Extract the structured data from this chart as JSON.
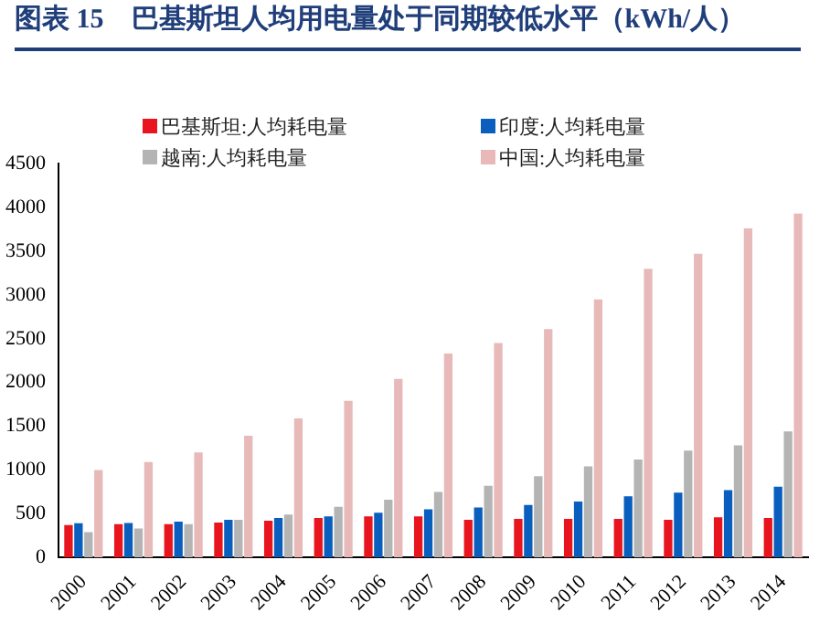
{
  "chart_data": {
    "type": "bar",
    "title": "图表 15　巴基斯坦人均用电量处于同期较低水平（kWh/人）",
    "categories": [
      "2000",
      "2001",
      "2002",
      "2003",
      "2004",
      "2005",
      "2006",
      "2007",
      "2008",
      "2009",
      "2010",
      "2011",
      "2012",
      "2013",
      "2014"
    ],
    "series": [
      {
        "name": "巴基斯坦:人均耗电量",
        "color": "#e8141e",
        "values": [
          370,
          380,
          380,
          400,
          420,
          450,
          470,
          470,
          430,
          440,
          440,
          440,
          430,
          460,
          450
        ]
      },
      {
        "name": "印度:人均耗电量",
        "color": "#0a5fbe",
        "values": [
          390,
          395,
          410,
          430,
          450,
          470,
          510,
          550,
          570,
          600,
          640,
          700,
          740,
          770,
          810
        ]
      },
      {
        "name": "越南:人均耗电量",
        "color": "#b4b4b4",
        "values": [
          290,
          330,
          380,
          430,
          490,
          580,
          660,
          750,
          820,
          930,
          1040,
          1120,
          1220,
          1280,
          1440
        ]
      },
      {
        "name": "中国:人均耗电量",
        "color": "#e8b9b9",
        "values": [
          1000,
          1090,
          1200,
          1390,
          1590,
          1790,
          2040,
          2330,
          2450,
          2610,
          2950,
          3300,
          3470,
          3760,
          3930
        ]
      }
    ],
    "ylim": [
      0,
      4500
    ],
    "yticks": [
      0,
      500,
      1000,
      1500,
      2000,
      2500,
      3000,
      3500,
      4000,
      4500
    ],
    "grid": false,
    "legend": "top"
  }
}
